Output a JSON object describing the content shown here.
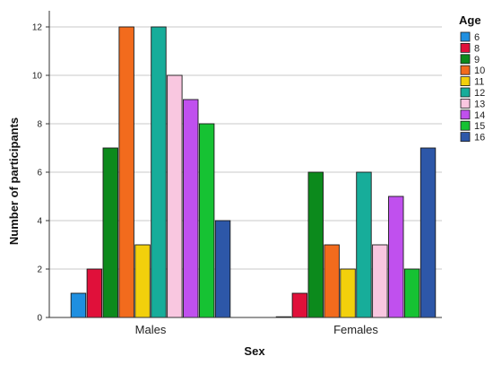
{
  "chart_data": {
    "type": "bar",
    "categories": [
      "Males",
      "Females"
    ],
    "xlabel": "Sex",
    "ylabel": "Number of participants",
    "ylim": [
      0,
      12
    ],
    "yticks": [
      0,
      2,
      4,
      6,
      8,
      10,
      12
    ],
    "grid": true,
    "legend": {
      "title": "Age",
      "placement": "right"
    },
    "series": [
      {
        "name": "6",
        "color": "#1f8fe0",
        "values": [
          1,
          0
        ]
      },
      {
        "name": "8",
        "color": "#e0103a",
        "values": [
          2,
          1
        ]
      },
      {
        "name": "9",
        "color": "#0c8a1c",
        "values": [
          7,
          6
        ]
      },
      {
        "name": "10",
        "color": "#f26b1d",
        "values": [
          12,
          3
        ]
      },
      {
        "name": "11",
        "color": "#f2d00c",
        "values": [
          3,
          2
        ]
      },
      {
        "name": "12",
        "color": "#17ad9a",
        "values": [
          12,
          6
        ]
      },
      {
        "name": "13",
        "color": "#f9c7e0",
        "values": [
          10,
          3
        ]
      },
      {
        "name": "14",
        "color": "#c050ee",
        "values": [
          9,
          5
        ]
      },
      {
        "name": "15",
        "color": "#16c233",
        "values": [
          8,
          2
        ]
      },
      {
        "name": "16",
        "color": "#2d57a8",
        "values": [
          4,
          7
        ]
      }
    ]
  }
}
